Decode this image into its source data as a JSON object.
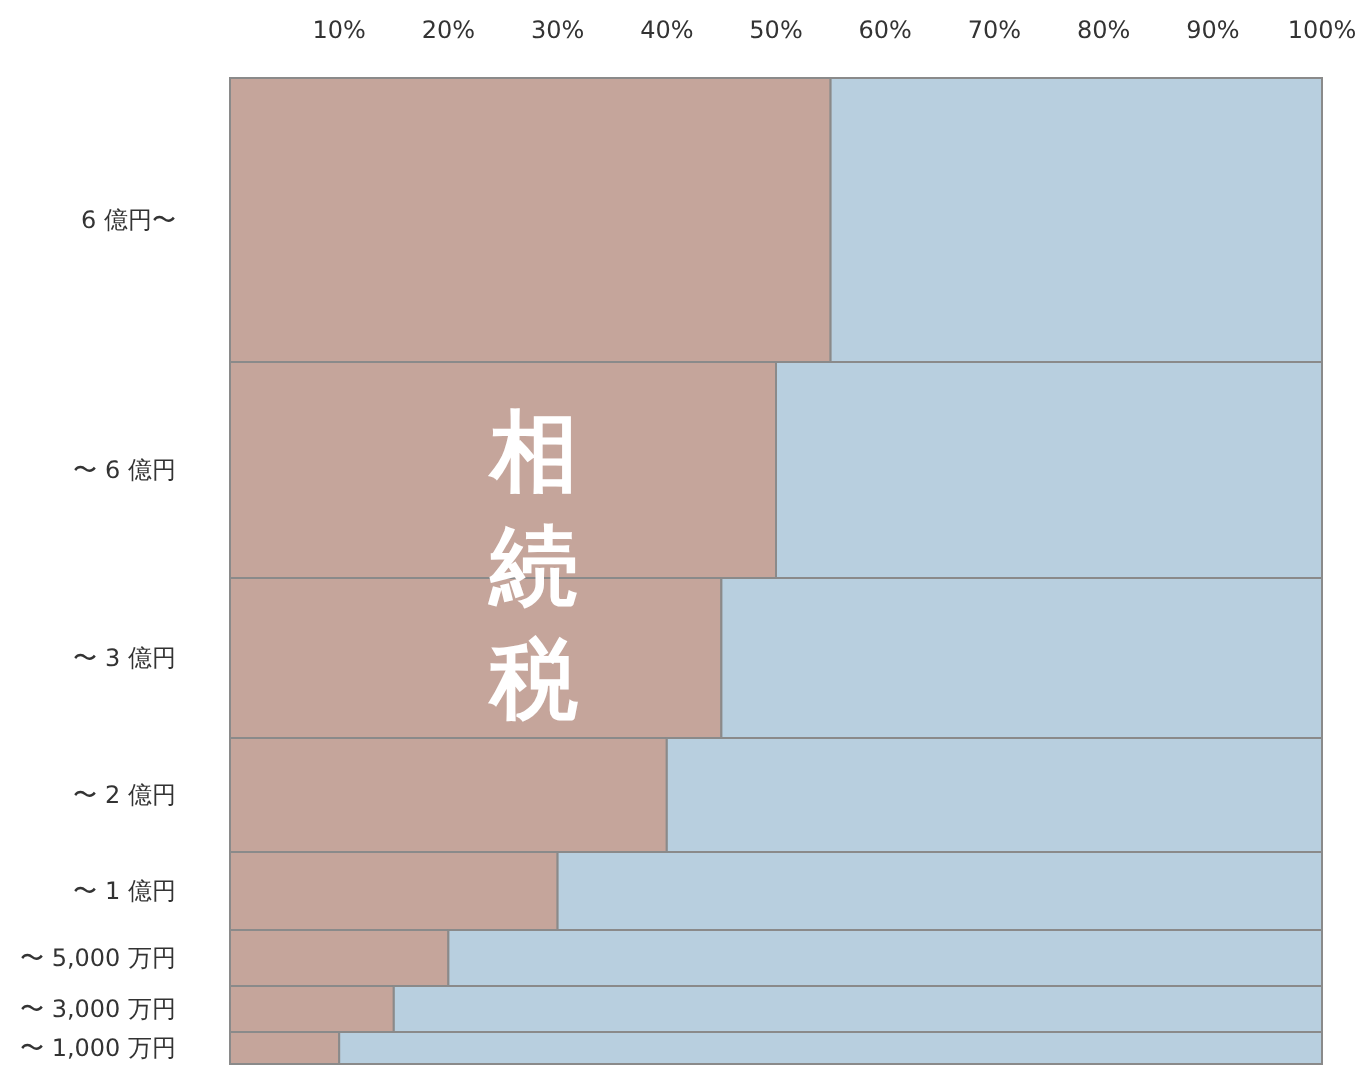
{
  "chart_data": {
    "type": "bar",
    "orientation": "horizontal",
    "stacked": true,
    "categories": [
      "6 億円〜",
      "〜 6 億円",
      "〜 3 億円",
      "〜 2 億円",
      "〜 1 億円",
      "〜 5,000 万円",
      "〜 3,000 万円",
      "〜 1,000 万円"
    ],
    "series": [
      {
        "color": "#c5a59b",
        "values": [
          55,
          50,
          45,
          40,
          30,
          20,
          15,
          10
        ]
      },
      {
        "color": "#b8cfdf",
        "values": [
          45,
          50,
          55,
          60,
          70,
          80,
          85,
          90
        ]
      }
    ],
    "xlim": [
      0,
      100
    ],
    "xticks": [
      {
        "value": 10,
        "label": "10%"
      },
      {
        "value": 20,
        "label": "20%"
      },
      {
        "value": 30,
        "label": "30%"
      },
      {
        "value": 40,
        "label": "40%"
      },
      {
        "value": 50,
        "label": "50%"
      },
      {
        "value": 60,
        "label": "60%"
      },
      {
        "value": 70,
        "label": "70%"
      },
      {
        "value": 80,
        "label": "80%"
      },
      {
        "value": 90,
        "label": "90%"
      },
      {
        "value": 100,
        "label": "100%"
      }
    ],
    "annotations": [
      "相続税"
    ],
    "grid": false
  }
}
